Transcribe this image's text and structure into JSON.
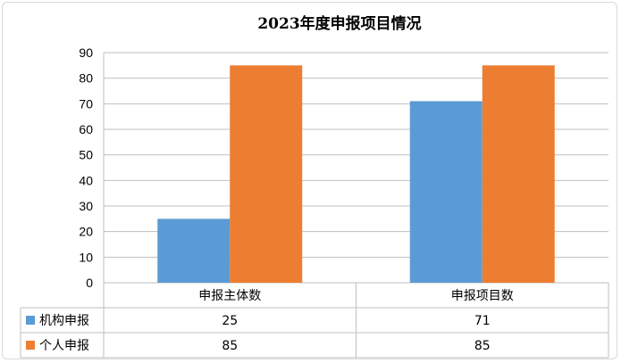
{
  "chart_data": {
    "type": "bar",
    "title": "2023年度申报项目情况",
    "categories": [
      "申报主体数",
      "申报项目数"
    ],
    "series": [
      {
        "name": "机构申报",
        "values": [
          25,
          71
        ],
        "color": "#5b9bd5"
      },
      {
        "name": "个人申报",
        "values": [
          85,
          85
        ],
        "color": "#ed7d31"
      }
    ],
    "ylim": [
      0,
      90
    ],
    "yticks": [
      0,
      10,
      20,
      30,
      40,
      50,
      60,
      70,
      80,
      90
    ],
    "grid": true,
    "legend": "data-table-left",
    "gridline_color": "#bfbfbf"
  }
}
